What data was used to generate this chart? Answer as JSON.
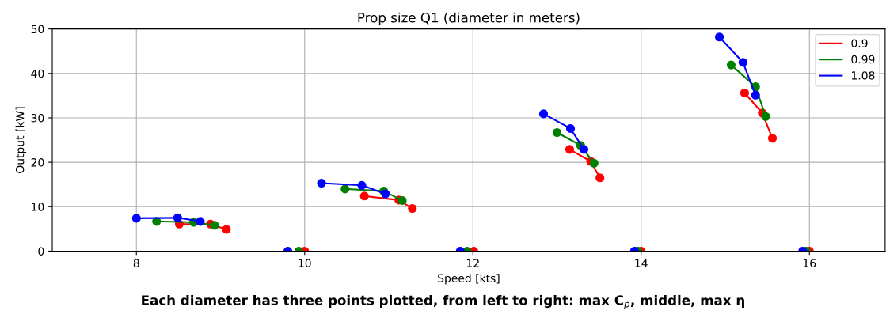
{
  "chart_data": {
    "type": "line",
    "title": "Prop size Q1 (diameter in meters)",
    "xlabel": "Speed [kts]",
    "ylabel": "Output [kW]",
    "annotations": [
      "Each diameter has three points plotted, from left to right: max C$_{p}$, middle, max η"
    ],
    "xlim": [
      7.0,
      16.9
    ],
    "xticks": [
      8,
      10,
      12,
      14,
      16
    ],
    "ylim": [
      0,
      50
    ],
    "yticks": [
      0,
      10,
      20,
      30,
      40,
      50
    ],
    "grid": true,
    "legend": "top right",
    "marker": "circle",
    "line_style": "solid",
    "series": [
      {
        "name": "0.9",
        "color": "#ff0000",
        "x": [
          8.51,
          8.88,
          9.07,
          null,
          10.0,
          null,
          10.71,
          11.12,
          11.28,
          null,
          12.01,
          null,
          13.15,
          13.4,
          13.51,
          null,
          14.0,
          null,
          15.23,
          15.44,
          15.56,
          null,
          16.0
        ],
        "values": [
          6.1,
          6.1,
          4.9,
          null,
          0,
          null,
          12.4,
          11.5,
          9.6,
          null,
          0,
          null,
          22.9,
          20.2,
          16.5,
          null,
          0,
          null,
          35.6,
          31.1,
          25.4,
          null,
          0
        ]
      },
      {
        "name": "0.99",
        "color": "#008000",
        "x": [
          8.24,
          8.68,
          8.93,
          null,
          9.93,
          null,
          10.48,
          10.94,
          11.16,
          null,
          11.93,
          null,
          13.0,
          13.28,
          13.44,
          null,
          13.96,
          null,
          15.07,
          15.36,
          15.48,
          null,
          15.96
        ],
        "values": [
          6.7,
          6.5,
          5.8,
          null,
          0,
          null,
          14.0,
          13.5,
          11.4,
          null,
          0,
          null,
          26.7,
          23.8,
          19.8,
          null,
          0,
          null,
          41.9,
          37.0,
          30.3,
          null,
          0
        ]
      },
      {
        "name": "1.08",
        "color": "#0000ff",
        "x": [
          8.0,
          8.49,
          8.76,
          null,
          9.8,
          null,
          10.2,
          10.68,
          10.96,
          null,
          11.85,
          null,
          12.84,
          13.16,
          13.32,
          null,
          13.92,
          null,
          14.93,
          15.21,
          15.36,
          null,
          15.92
        ],
        "values": [
          7.4,
          7.5,
          6.7,
          null,
          0,
          null,
          15.3,
          14.8,
          12.9,
          null,
          0,
          null,
          30.9,
          27.6,
          22.9,
          null,
          0,
          null,
          48.2,
          42.5,
          35.1,
          null,
          0
        ]
      }
    ]
  }
}
